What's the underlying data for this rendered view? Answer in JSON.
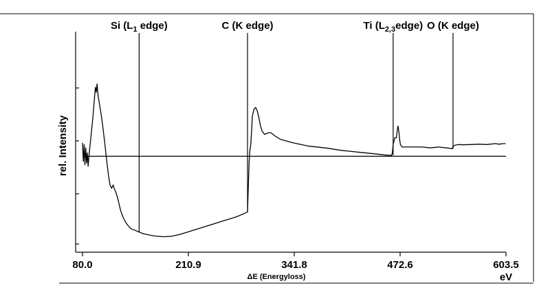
{
  "chart_data": {
    "type": "line",
    "xlabel": "ΔE (Energyloss)",
    "ylabel": "rel. Intensity",
    "x_unit": "eV",
    "xlim": [
      80.0,
      603.5
    ],
    "ylim": [
      0,
      100
    ],
    "x_ticks": [
      "80.0",
      "210.9",
      "341.8",
      "472.6",
      "603.5"
    ],
    "y_ticks_count": 4,
    "grid": false,
    "baseline_y": 48,
    "edges": [
      {
        "x": 150,
        "label": "Si (L",
        "sub": "1",
        "suffix": " edge)"
      },
      {
        "x": 284,
        "label": "C (K edge)",
        "sub": "",
        "suffix": ""
      },
      {
        "x": 464,
        "label": "Ti (L",
        "sub": "2,3",
        "suffix": "edge)"
      },
      {
        "x": 538,
        "label": "O (K edge)",
        "sub": "",
        "suffix": ""
      }
    ],
    "series": [
      {
        "points": [
          [
            80,
            56
          ],
          [
            81,
            45
          ],
          [
            82,
            55
          ],
          [
            83,
            43
          ],
          [
            84,
            53
          ],
          [
            85,
            44
          ],
          [
            86,
            50
          ],
          [
            87,
            42
          ],
          [
            88,
            48
          ],
          [
            89,
            53
          ],
          [
            91,
            62
          ],
          [
            93,
            72
          ],
          [
            95,
            84
          ],
          [
            96,
            89
          ],
          [
            97,
            86
          ],
          [
            98,
            91
          ],
          [
            99,
            85
          ],
          [
            100,
            82
          ],
          [
            102,
            76
          ],
          [
            104,
            70
          ],
          [
            106,
            62
          ],
          [
            108,
            54
          ],
          [
            110,
            45
          ],
          [
            112,
            37
          ],
          [
            114,
            31
          ],
          [
            116,
            29
          ],
          [
            118,
            31
          ],
          [
            119,
            29
          ],
          [
            121,
            27
          ],
          [
            123,
            24
          ],
          [
            125,
            20
          ],
          [
            127,
            16
          ],
          [
            130,
            12
          ],
          [
            133,
            9
          ],
          [
            136,
            7
          ],
          [
            140,
            5
          ],
          [
            145,
            4
          ],
          [
            150,
            3
          ],
          [
            155,
            2
          ],
          [
            160,
            1.5
          ],
          [
            165,
            1
          ],
          [
            170,
            0.6
          ],
          [
            180,
            0.2
          ],
          [
            190,
            0.5
          ],
          [
            200,
            1.5
          ],
          [
            210,
            3
          ],
          [
            220,
            4.5
          ],
          [
            230,
            6
          ],
          [
            240,
            7.5
          ],
          [
            250,
            9
          ],
          [
            260,
            10.5
          ],
          [
            270,
            12
          ],
          [
            280,
            14
          ],
          [
            284,
            15
          ],
          [
            285,
            30
          ],
          [
            286,
            45
          ],
          [
            287,
            52
          ],
          [
            288,
            55
          ],
          [
            289,
            63
          ],
          [
            290,
            72
          ],
          [
            292,
            76
          ],
          [
            294,
            77
          ],
          [
            296,
            75
          ],
          [
            298,
            71
          ],
          [
            300,
            66
          ],
          [
            302,
            63
          ],
          [
            305,
            61
          ],
          [
            310,
            62
          ],
          [
            313,
            62
          ],
          [
            318,
            60
          ],
          [
            325,
            58
          ],
          [
            340,
            56
          ],
          [
            360,
            54
          ],
          [
            380,
            53
          ],
          [
            400,
            51.5
          ],
          [
            420,
            50.5
          ],
          [
            440,
            49.5
          ],
          [
            455,
            48.7
          ],
          [
            462,
            48.5
          ],
          [
            463,
            50
          ],
          [
            464,
            55
          ],
          [
            466,
            59
          ],
          [
            468,
            59
          ],
          [
            469,
            63
          ],
          [
            470,
            66
          ],
          [
            471,
            63
          ],
          [
            472,
            58
          ],
          [
            473,
            55
          ],
          [
            475,
            53.5
          ],
          [
            480,
            53.5
          ],
          [
            490,
            53.5
          ],
          [
            500,
            53.5
          ],
          [
            510,
            53
          ],
          [
            520,
            53.5
          ],
          [
            530,
            53
          ],
          [
            537,
            52.5
          ],
          [
            538,
            53.8
          ],
          [
            540,
            54.5
          ],
          [
            545,
            55
          ],
          [
            550,
            54.8
          ],
          [
            560,
            55
          ],
          [
            570,
            55.2
          ],
          [
            580,
            55
          ],
          [
            590,
            55.5
          ],
          [
            595,
            55.2
          ],
          [
            600,
            55.5
          ],
          [
            603,
            55.5
          ]
        ]
      }
    ]
  }
}
